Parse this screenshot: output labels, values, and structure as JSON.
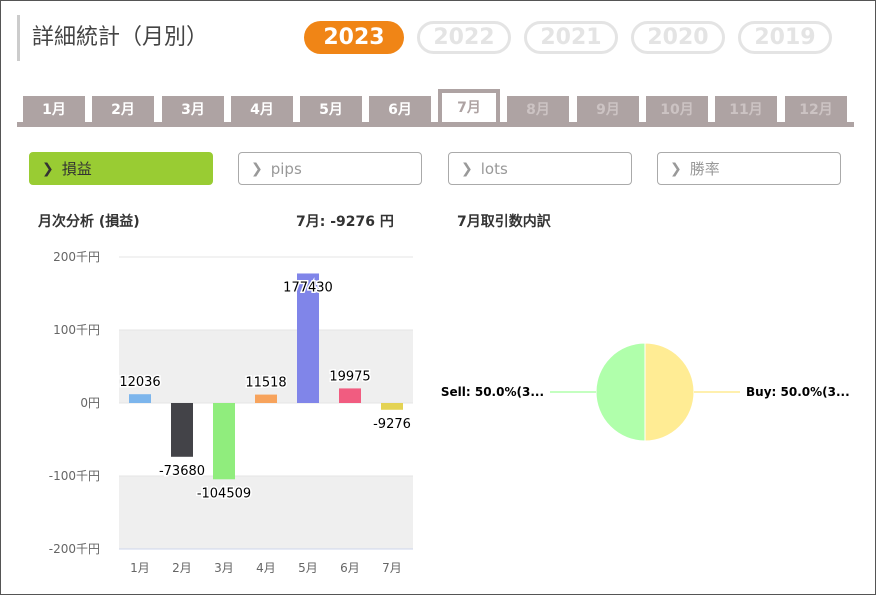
{
  "page": {
    "title": "詳細統計（月別）"
  },
  "years": [
    {
      "label": "2023",
      "active": true
    },
    {
      "label": "2022",
      "active": false
    },
    {
      "label": "2021",
      "active": false
    },
    {
      "label": "2020",
      "active": false
    },
    {
      "label": "2019",
      "active": false
    }
  ],
  "months": [
    "1月",
    "2月",
    "3月",
    "4月",
    "5月",
    "6月",
    "7月",
    "8月",
    "9月",
    "10月",
    "11月",
    "12月"
  ],
  "active_month_index": 6,
  "metrics": [
    {
      "label": "損益",
      "active": true
    },
    {
      "label": "pips",
      "active": false
    },
    {
      "label": "lots",
      "active": false
    },
    {
      "label": "勝率",
      "active": false
    }
  ],
  "bar_panel": {
    "title": "月次分析 (損益)",
    "summary": "7月:  -9276 円"
  },
  "pie_panel": {
    "title": "7月取引数内訳"
  },
  "colors": {
    "accent": "#f08516",
    "metric_active": "#99cc33",
    "tab": "#aea3a3"
  },
  "icons": {
    "chevron": "chevron-right-icon"
  },
  "chart_data": [
    {
      "type": "bar",
      "categories": [
        "1月",
        "2月",
        "3月",
        "4月",
        "5月",
        "6月",
        "7月"
      ],
      "values": [
        12036,
        -73680,
        -104509,
        11518,
        177430,
        19975,
        -9276
      ],
      "colors": [
        "#7cb5ec",
        "#434348",
        "#90ed7d",
        "#f7a35c",
        "#8085e9",
        "#f15c80",
        "#e4d354"
      ],
      "ylim": [
        -200000,
        200000
      ],
      "yticks": [
        200000,
        100000,
        0,
        -100000,
        -200000
      ],
      "ytick_labels": [
        "200千円",
        "100千円",
        "0円",
        "-100千円",
        "-200千円"
      ],
      "plot_bands": [
        [
          0,
          100000
        ],
        [
          -200000,
          -100000
        ]
      ]
    },
    {
      "type": "pie",
      "labels": [
        "Buy: 50.0%(3...",
        "Sell: 50.0%(3..."
      ],
      "values": [
        50,
        50
      ],
      "colors": [
        "#ffec94",
        "#b0ffab"
      ]
    }
  ]
}
